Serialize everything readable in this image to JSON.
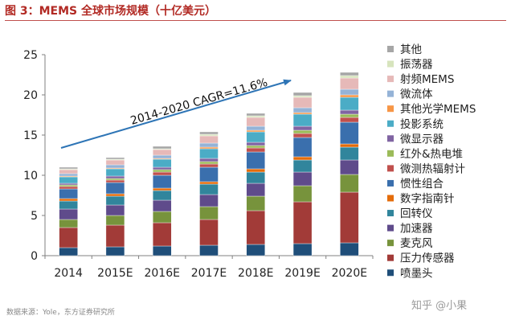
{
  "figure_title": "图 3：MEMS 全球市场规模（十亿美元）",
  "source_text": "数据来源：Yole，东方证券研究所",
  "watermark_text": "知乎 @小果",
  "chart_data": {
    "type": "bar",
    "stacked": true,
    "title": "",
    "xlabel": "",
    "ylabel": "",
    "ylim": [
      0,
      25
    ],
    "yticks": [
      "0",
      "5",
      "10",
      "15",
      "20",
      "25"
    ],
    "grid": false,
    "legend_position": "right",
    "annotation": "2014-2020 CAGR=11.6%",
    "categories": [
      "2014",
      "2015E",
      "2016E",
      "2017E",
      "2018E",
      "2019E",
      "2020E"
    ],
    "series": [
      {
        "name": "喷墨头",
        "color": "#1f4e79",
        "values": [
          1.0,
          1.1,
          1.2,
          1.3,
          1.4,
          1.5,
          1.6
        ]
      },
      {
        "name": "压力传感器",
        "color": "#a23b38",
        "values": [
          2.5,
          2.7,
          2.9,
          3.2,
          4.2,
          5.2,
          6.3
        ]
      },
      {
        "name": "麦克风",
        "color": "#77933c",
        "values": [
          1.0,
          1.2,
          1.4,
          1.6,
          1.8,
          2.0,
          2.2
        ]
      },
      {
        "name": "加速器",
        "color": "#5f4b8b",
        "values": [
          1.3,
          1.3,
          1.4,
          1.5,
          1.6,
          1.7,
          1.8
        ]
      },
      {
        "name": "回转仪",
        "color": "#31859c",
        "values": [
          1.0,
          1.1,
          1.2,
          1.3,
          1.4,
          1.5,
          1.6
        ]
      },
      {
        "name": "数字指南针",
        "color": "#e46c0a",
        "values": [
          0.3,
          0.3,
          0.3,
          0.3,
          0.4,
          0.4,
          0.4
        ]
      },
      {
        "name": "惯性组合",
        "color": "#3a6fad",
        "values": [
          1.2,
          1.4,
          1.6,
          1.8,
          2.1,
          2.4,
          2.7
        ]
      },
      {
        "name": "微测热辐射计",
        "color": "#c0504d",
        "values": [
          0.3,
          0.3,
          0.4,
          0.4,
          0.5,
          0.5,
          0.6
        ]
      },
      {
        "name": "红外&热电堆",
        "color": "#9bbb59",
        "values": [
          0.2,
          0.2,
          0.3,
          0.3,
          0.3,
          0.4,
          0.4
        ]
      },
      {
        "name": "微显示器",
        "color": "#8064a2",
        "values": [
          0.2,
          0.3,
          0.3,
          0.4,
          0.4,
          0.5,
          0.5
        ]
      },
      {
        "name": "投影系统",
        "color": "#4bacc6",
        "values": [
          0.8,
          0.9,
          1.0,
          1.2,
          1.3,
          1.5,
          1.6
        ]
      },
      {
        "name": "其他光学MEMS",
        "color": "#f79646",
        "values": [
          0.1,
          0.1,
          0.1,
          0.2,
          0.2,
          0.2,
          0.3
        ]
      },
      {
        "name": "微流体",
        "color": "#95b3d7",
        "values": [
          0.3,
          0.4,
          0.4,
          0.5,
          0.5,
          0.6,
          0.7
        ]
      },
      {
        "name": "射频MEMS",
        "color": "#e6b9b8",
        "values": [
          0.5,
          0.6,
          0.7,
          0.9,
          1.1,
          1.3,
          1.4
        ]
      },
      {
        "name": "振荡器",
        "color": "#d7e4bd",
        "values": [
          0.1,
          0.1,
          0.1,
          0.2,
          0.2,
          0.2,
          0.3
        ]
      },
      {
        "name": "其他",
        "color": "#a6a6a6",
        "values": [
          0.2,
          0.2,
          0.3,
          0.3,
          0.3,
          0.4,
          0.4
        ]
      }
    ]
  }
}
